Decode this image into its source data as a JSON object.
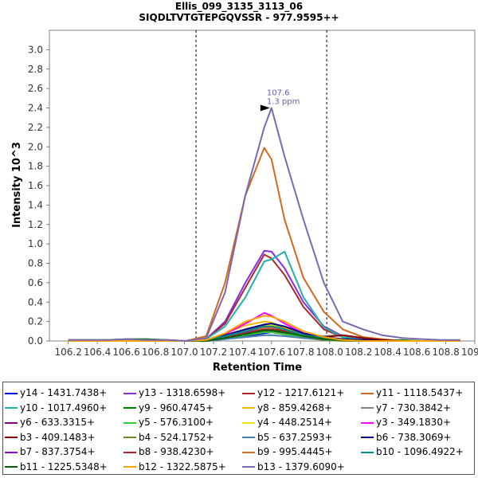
{
  "title_line1": "Ellis_099_3135_3113_06",
  "title_line2": "SIQDLTVTGTEPGQVSSR - 977.9595++",
  "chart_data": {
    "type": "line",
    "xlabel": "Retention Time",
    "ylabel": "Intensity 10^3",
    "xlim": [
      106.07,
      109.0
    ],
    "ylim": [
      0,
      3.2
    ],
    "x_ticks": [
      "106.2",
      "106.4",
      "106.6",
      "106.8",
      "107.0",
      "107.2",
      "107.4",
      "107.6",
      "107.8",
      "108.0",
      "108.2",
      "108.4",
      "108.6",
      "108.8",
      "109.0"
    ],
    "y_ticks": [
      "0.0",
      "0.2",
      "0.4",
      "0.6",
      "0.8",
      "1.0",
      "1.2",
      "1.4",
      "1.6",
      "1.8",
      "2.0",
      "2.2",
      "2.4",
      "2.6",
      "2.8",
      "3.0"
    ],
    "integration_bounds": [
      107.08,
      107.98
    ],
    "annotation": {
      "x": 107.6,
      "y": 2.4,
      "line1": "107.6",
      "line2": "1.3 ppm"
    },
    "x": [
      106.2,
      106.34,
      106.47,
      106.61,
      106.74,
      106.88,
      107.01,
      107.15,
      107.28,
      107.42,
      107.55,
      107.6,
      107.69,
      107.82,
      107.96,
      108.09,
      108.23,
      108.36,
      108.5,
      108.63,
      108.77,
      108.9
    ],
    "series": [
      {
        "name": "y14 - 1431.7438+",
        "color": "#0000e0",
        "values": [
          0,
          0,
          0,
          0.01,
          0,
          0,
          0,
          0,
          0.02,
          0.05,
          0.08,
          0.09,
          0.07,
          0.04,
          0.02,
          0.01,
          0,
          0,
          0,
          0,
          0,
          0
        ]
      },
      {
        "name": "y13 - 1318.6598+",
        "color": "#8a2be2",
        "values": [
          0,
          0,
          0,
          0,
          0,
          0,
          0,
          0.02,
          0.2,
          0.6,
          0.93,
          0.92,
          0.75,
          0.4,
          0.15,
          0.05,
          0.02,
          0,
          0,
          0,
          0,
          0
        ]
      },
      {
        "name": "y12 - 1217.6121+",
        "color": "#a52a2a",
        "values": [
          0,
          0,
          0,
          0,
          0,
          0,
          0,
          0.02,
          0.18,
          0.55,
          0.89,
          0.85,
          0.68,
          0.35,
          0.12,
          0.04,
          0.01,
          0,
          0,
          0,
          0,
          0
        ]
      },
      {
        "name": "y11 - 1118.5437+",
        "color": "#d2691e",
        "values": [
          0.01,
          0.01,
          0,
          0.01,
          0,
          0,
          0,
          0.05,
          0.6,
          1.5,
          1.99,
          1.87,
          1.25,
          0.65,
          0.3,
          0.12,
          0.04,
          0.02,
          0,
          0,
          0,
          0
        ]
      },
      {
        "name": "y10 - 1017.4960+",
        "color": "#20b2aa",
        "values": [
          0,
          0,
          0,
          0,
          0,
          0,
          0,
          0.02,
          0.15,
          0.45,
          0.82,
          0.84,
          0.92,
          0.45,
          0.14,
          0.04,
          0.01,
          0,
          0,
          0,
          0,
          0
        ]
      },
      {
        "name": "y9 - 960.4745+",
        "color": "#008000",
        "values": [
          0.01,
          0.01,
          0.01,
          0.02,
          0.02,
          0.01,
          0,
          0.01,
          0.04,
          0.1,
          0.16,
          0.16,
          0.13,
          0.07,
          0.03,
          0.02,
          0.01,
          0,
          0.01,
          0,
          0,
          0
        ]
      },
      {
        "name": "y8 - 859.4268+",
        "color": "#ffb400",
        "values": [
          0,
          0,
          0,
          0,
          0,
          0,
          0,
          0.01,
          0.08,
          0.16,
          0.2,
          0.19,
          0.14,
          0.08,
          0.03,
          0.01,
          0,
          0,
          0,
          0,
          0,
          0
        ]
      },
      {
        "name": "y7 - 730.3842+",
        "color": "#808080",
        "values": [
          0,
          0,
          0,
          0.01,
          0.01,
          0.01,
          0,
          0.01,
          0.06,
          0.12,
          0.15,
          0.15,
          0.12,
          0.07,
          0.05,
          0.06,
          0.03,
          0.01,
          0,
          0,
          0,
          0
        ]
      },
      {
        "name": "y6 - 633.3315+",
        "color": "#800080",
        "values": [
          0,
          0,
          0,
          0,
          0,
          0,
          0,
          0,
          0.03,
          0.07,
          0.1,
          0.1,
          0.08,
          0.05,
          0.02,
          0.01,
          0,
          0,
          0,
          0,
          0,
          0
        ]
      },
      {
        "name": "y5 - 576.3100+",
        "color": "#32cd32",
        "values": [
          0,
          0,
          0,
          0,
          0,
          0,
          0,
          0,
          0.03,
          0.06,
          0.09,
          0.09,
          0.07,
          0.04,
          0.02,
          0.01,
          0,
          0,
          0,
          0,
          0,
          0
        ]
      },
      {
        "name": "y4 - 448.2514+",
        "color": "#e8e800",
        "values": [
          0,
          0,
          0,
          0,
          0,
          0,
          0,
          0.01,
          0.05,
          0.12,
          0.17,
          0.16,
          0.12,
          0.06,
          0.02,
          0.01,
          0,
          0,
          0,
          0,
          0,
          0
        ]
      },
      {
        "name": "y3 - 349.1830+",
        "color": "#ff00ff",
        "values": [
          0,
          0,
          0,
          0,
          0,
          0,
          0,
          0.01,
          0.07,
          0.18,
          0.29,
          0.26,
          0.18,
          0.08,
          0.03,
          0.01,
          0,
          0,
          0,
          0,
          0,
          0
        ]
      },
      {
        "name": "b3 - 409.1483+",
        "color": "#8b0000",
        "values": [
          0,
          0,
          0,
          0,
          0,
          0,
          0,
          0.01,
          0.03,
          0.07,
          0.12,
          0.12,
          0.1,
          0.06,
          0.04,
          0.06,
          0.03,
          0.01,
          0,
          0,
          0,
          0
        ]
      },
      {
        "name": "b4 - 524.1752+",
        "color": "#6b8e23",
        "values": [
          0,
          0,
          0,
          0,
          0,
          0,
          0,
          0,
          0.02,
          0.04,
          0.06,
          0.06,
          0.05,
          0.03,
          0.01,
          0,
          0,
          0,
          0,
          0,
          0,
          0
        ]
      },
      {
        "name": "b5 - 637.2593+",
        "color": "#4682b4",
        "values": [
          0,
          0,
          0,
          0,
          0,
          0,
          0,
          0,
          0.02,
          0.04,
          0.06,
          0.06,
          0.05,
          0.03,
          0.02,
          0.01,
          0,
          0,
          0,
          0,
          0,
          0
        ]
      },
      {
        "name": "b6 - 738.3069+",
        "color": "#00008b",
        "values": [
          0,
          0,
          0,
          0,
          0,
          0,
          0,
          0.01,
          0.06,
          0.12,
          0.17,
          0.18,
          0.15,
          0.08,
          0.04,
          0.02,
          0.01,
          0,
          0,
          0,
          0,
          0
        ]
      },
      {
        "name": "b7 - 837.3754+",
        "color": "#9400d3",
        "values": [
          0,
          0,
          0,
          0,
          0,
          0,
          0,
          0.01,
          0.04,
          0.09,
          0.14,
          0.14,
          0.11,
          0.06,
          0.03,
          0.01,
          0,
          0,
          0,
          0,
          0,
          0
        ]
      },
      {
        "name": "b8 - 938.4230+",
        "color": "#b22222",
        "values": [
          0,
          0,
          0,
          0,
          0,
          0,
          0,
          0.01,
          0.04,
          0.08,
          0.12,
          0.12,
          0.1,
          0.05,
          0.02,
          0.01,
          0,
          0,
          0,
          0,
          0,
          0
        ]
      },
      {
        "name": "b9 - 995.4445+",
        "color": "#e07020",
        "values": [
          0,
          0,
          0,
          0,
          0,
          0,
          0,
          0.01,
          0.05,
          0.1,
          0.14,
          0.14,
          0.12,
          0.06,
          0.03,
          0.01,
          0,
          0,
          0,
          0,
          0,
          0
        ]
      },
      {
        "name": "b10 - 1096.4922+",
        "color": "#008b8b",
        "values": [
          0,
          0,
          0,
          0,
          0,
          0,
          0,
          0.01,
          0.05,
          0.1,
          0.15,
          0.15,
          0.12,
          0.06,
          0.03,
          0.01,
          0,
          0,
          0,
          0,
          0,
          0
        ]
      },
      {
        "name": "b11 - 1225.5348+",
        "color": "#006400",
        "values": [
          0,
          0,
          0,
          0,
          0,
          0,
          0,
          0,
          0.03,
          0.07,
          0.11,
          0.11,
          0.09,
          0.05,
          0.02,
          0.01,
          0,
          0,
          0,
          0,
          0,
          0
        ]
      },
      {
        "name": "b12 - 1322.5875+",
        "color": "#ffa500",
        "values": [
          0,
          0,
          0,
          0,
          0,
          0,
          0,
          0.01,
          0.08,
          0.2,
          0.26,
          0.25,
          0.2,
          0.1,
          0.04,
          0.01,
          0,
          0,
          0,
          0,
          0,
          0
        ]
      },
      {
        "name": "b13 - 1379.6090+",
        "color": "#7b68b0",
        "values": [
          0.01,
          0.01,
          0.01,
          0.02,
          0.01,
          0.01,
          0,
          0.03,
          0.5,
          1.5,
          2.2,
          2.4,
          1.9,
          1.25,
          0.6,
          0.2,
          0.12,
          0.06,
          0.03,
          0.02,
          0.01,
          0.01
        ]
      }
    ]
  }
}
